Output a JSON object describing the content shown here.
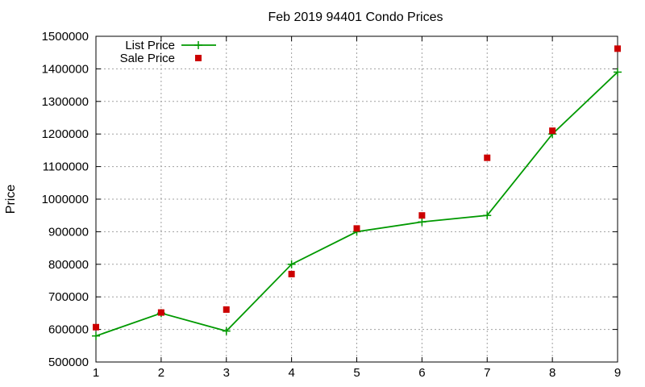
{
  "chart_data": {
    "type": "line",
    "title": "Feb 2019 94401 Condo Prices",
    "xlabel": "",
    "ylabel": "Price",
    "xlim": [
      1,
      9
    ],
    "ylim": [
      500000,
      1500000
    ],
    "x_ticks": [
      "1",
      "2",
      "3",
      "4",
      "5",
      "6",
      "7",
      "8",
      "9"
    ],
    "y_ticks": [
      "500000",
      "600000",
      "700000",
      "800000",
      "900000",
      "1000000",
      "1100000",
      "1200000",
      "1300000",
      "1400000",
      "1500000"
    ],
    "grid": true,
    "legend_position": "top-left",
    "x": [
      1,
      2,
      3,
      4,
      5,
      6,
      7,
      8,
      9
    ],
    "series": [
      {
        "name": "List Price",
        "style": "line-with-plus-markers",
        "color": "#009900",
        "values": [
          580000,
          650000,
          595000,
          800000,
          900000,
          930000,
          950000,
          1200000,
          1390000
        ]
      },
      {
        "name": "Sale Price",
        "style": "square-markers",
        "color": "#cc0000",
        "values": [
          607000,
          652000,
          661000,
          770000,
          910000,
          950000,
          1127000,
          1210000,
          1462000
        ]
      }
    ]
  }
}
